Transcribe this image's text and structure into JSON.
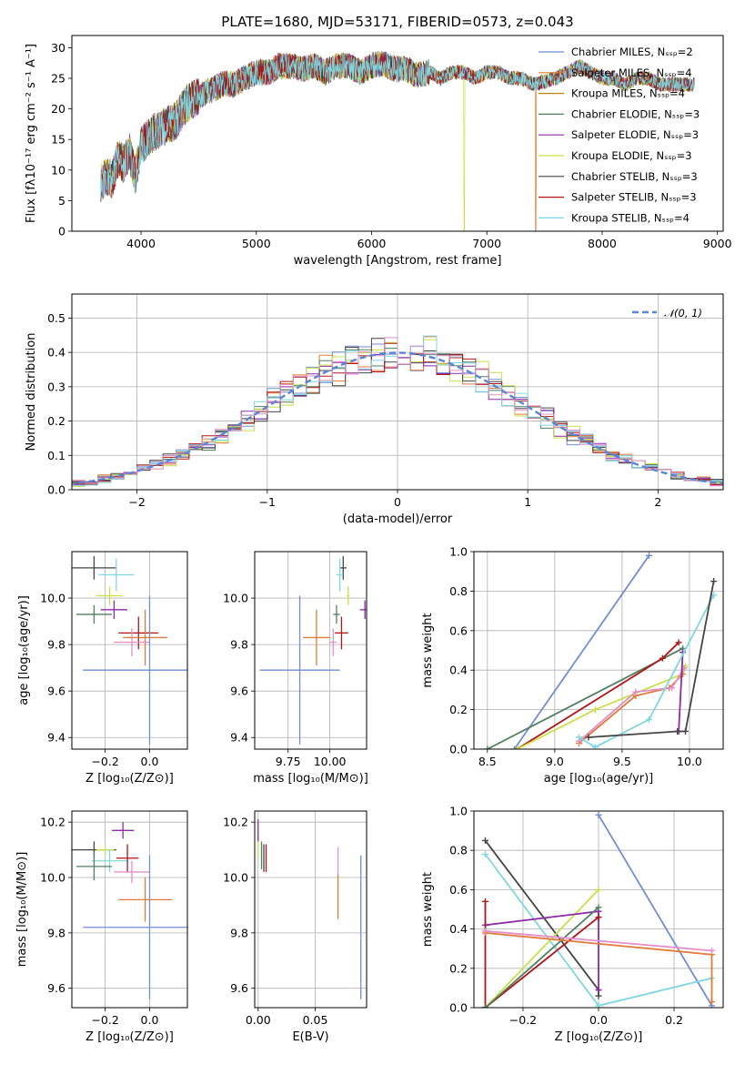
{
  "figure_title": "PLATE=1680, MJD=53171, FIBERID=0573, z=0.043",
  "chart_data": [
    {
      "id": "spectrum",
      "type": "line",
      "xlabel": "wavelength [Angstrom, rest frame]",
      "ylabel": "Flux [fλ10⁻¹⁷ erg cm⁻² s⁻¹ A⁻¹]",
      "xlim": [
        3400,
        9050
      ],
      "ylim": [
        0,
        32
      ],
      "xticks": [
        4000,
        5000,
        6000,
        7000,
        8000,
        9000
      ],
      "yticks": [
        0,
        5,
        10,
        15,
        20,
        25,
        30
      ],
      "grid": false,
      "legend_position": "upper-right",
      "observed_envelope": {
        "x": [
          3650,
          3700,
          3750,
          3800,
          3850,
          3900,
          3950,
          4000,
          4100,
          4200,
          4300,
          4400,
          4500,
          4600,
          4700,
          4800,
          4900,
          5000,
          5100,
          5200,
          5300,
          5400,
          5500,
          5600,
          5700,
          5800,
          5900,
          6000,
          6100,
          6200,
          6300,
          6400,
          6500,
          6600,
          6700,
          6800,
          6900,
          7000,
          7100,
          7200,
          7300,
          7400,
          7500,
          7600,
          7700,
          7800,
          7900,
          8000,
          8100,
          8200,
          8300,
          8400,
          8500,
          8600,
          8700,
          8800
        ],
        "y": [
          8,
          9,
          8.5,
          12,
          11,
          13,
          9,
          14,
          16,
          17,
          18,
          21,
          22,
          23,
          24,
          24,
          25,
          26,
          26,
          27,
          27,
          26.5,
          27,
          26,
          27,
          27,
          26,
          27,
          27.5,
          26.5,
          26.5,
          25.5,
          26,
          25,
          26,
          26,
          25,
          26,
          26,
          25,
          25,
          24,
          24.5,
          25,
          26,
          27,
          26,
          25,
          25,
          24,
          25,
          25,
          24,
          24,
          24,
          24
        ]
      },
      "series": [
        {
          "name": "Chabrier MILES, Nₛₛₚ=2",
          "color": "#6e8ed6",
          "cutoff": null
        },
        {
          "name": "Salpeter MILES, Nₛₛₚ=4",
          "color": "#e07b39",
          "cutoff": 7420
        },
        {
          "name": "Kroupa MILES, Nₛₛₚ=4",
          "color": "#b8860b",
          "cutoff": null
        },
        {
          "name": "Chabrier ELODIE, Nₛₛₚ=3",
          "color": "#4f7f5f",
          "cutoff": null
        },
        {
          "name": "Salpeter ELODIE, Nₛₛₚ=3",
          "color": "#8e2aa8",
          "cutoff": null
        },
        {
          "name": "Kroupa ELODIE, Nₛₛₚ=3",
          "color": "#c8e04a",
          "cutoff": 6800
        },
        {
          "name": "Chabrier STELIB, Nₛₛₚ=3",
          "color": "#444444",
          "cutoff": null
        },
        {
          "name": "Salpeter STELIB, Nₛₛₚ=3",
          "color": "#b01515",
          "cutoff": null
        },
        {
          "name": "Kroupa STELIB, Nₛₛₚ=4",
          "color": "#7fd6e0",
          "cutoff": null
        }
      ]
    },
    {
      "id": "residuals",
      "type": "line",
      "xlabel": "(data-model)/error",
      "ylabel": "Normed distribution",
      "xlim": [
        -2.5,
        2.5
      ],
      "ylim": [
        0,
        0.57
      ],
      "xticks": [
        -2,
        -1,
        0,
        1,
        2
      ],
      "yticks": [
        0.0,
        0.1,
        0.2,
        0.3,
        0.4,
        0.5
      ],
      "grid": true,
      "legend_position": "upper-right",
      "reference_curve": {
        "name": "𝒩(0, 1)",
        "color": "#5b84d6",
        "style": "dashed",
        "mean": 0,
        "sigma": 1
      },
      "bins": {
        "start": -2.5,
        "width": 0.1,
        "count": 50
      },
      "hist_series_colors": [
        "#6e8ed6",
        "#e07b39",
        "#4f7f5f",
        "#8e2aa8",
        "#c8e04a",
        "#444444",
        "#b01515",
        "#7fd6e0",
        "#e48fc8"
      ]
    },
    {
      "id": "age-vs-Z",
      "type": "scatter",
      "xlabel": "Z [log₁₀(Z/Z⊙)]",
      "ylabel": "age  [log₁₀(age/yr)]",
      "xlim": [
        -0.35,
        0.17
      ],
      "ylim": [
        9.35,
        10.2
      ],
      "xticks": [
        -0.2,
        0.0
      ],
      "yticks": [
        9.4,
        9.6,
        9.8,
        10.0
      ],
      "grid": true,
      "points": [
        {
          "x": -0.25,
          "y": 10.13,
          "xerr": 0.1,
          "yerr": 0.05,
          "color": "#444444"
        },
        {
          "x": -0.15,
          "y": 10.1,
          "xerr": 0.08,
          "yerr": 0.07,
          "color": "#7fd6e0"
        },
        {
          "x": -0.18,
          "y": 10.01,
          "xerr": 0.06,
          "yerr": 0.04,
          "color": "#c8e04a"
        },
        {
          "x": -0.16,
          "y": 9.95,
          "xerr": 0.06,
          "yerr": 0.04,
          "color": "#8e2aa8"
        },
        {
          "x": -0.25,
          "y": 9.93,
          "xerr": 0.08,
          "yerr": 0.04,
          "color": "#4f7f5f"
        },
        {
          "x": -0.05,
          "y": 9.85,
          "xerr": 0.09,
          "yerr": 0.07,
          "color": "#b01515"
        },
        {
          "x": -0.02,
          "y": 9.83,
          "xerr": 0.1,
          "yerr": 0.12,
          "color": "#e07b39"
        },
        {
          "x": -0.08,
          "y": 9.81,
          "xerr": 0.08,
          "yerr": 0.06,
          "color": "#e48fc8"
        },
        {
          "x": 0.0,
          "y": 9.69,
          "xerr": 0.3,
          "yerr": 0.32,
          "color": "#6e8ed6"
        }
      ]
    },
    {
      "id": "age-vs-mass",
      "type": "scatter",
      "xlabel": "mass [log₁₀(M/M⊙)]",
      "ylabel": "",
      "xlim": [
        9.55,
        10.22
      ],
      "ylim": [
        9.35,
        10.2
      ],
      "xticks": [
        9.75,
        10.0
      ],
      "yticks": [
        9.4,
        9.6,
        9.8,
        10.0
      ],
      "grid": true,
      "points": [
        {
          "x": 10.08,
          "y": 10.13,
          "xerr": 0.02,
          "yerr": 0.05,
          "color": "#444444"
        },
        {
          "x": 10.06,
          "y": 10.1,
          "xerr": 0.02,
          "yerr": 0.07,
          "color": "#7fd6e0"
        },
        {
          "x": 10.11,
          "y": 10.01,
          "xerr": 0.01,
          "yerr": 0.04,
          "color": "#c8e04a"
        },
        {
          "x": 10.21,
          "y": 9.95,
          "xerr": 0.03,
          "yerr": 0.04,
          "color": "#8e2aa8"
        },
        {
          "x": 10.04,
          "y": 9.93,
          "xerr": 0.02,
          "yerr": 0.04,
          "color": "#4f7f5f"
        },
        {
          "x": 10.07,
          "y": 9.85,
          "xerr": 0.04,
          "yerr": 0.07,
          "color": "#b01515"
        },
        {
          "x": 9.92,
          "y": 9.83,
          "xerr": 0.08,
          "yerr": 0.12,
          "color": "#e07b39"
        },
        {
          "x": 10.02,
          "y": 9.81,
          "xerr": 0.02,
          "yerr": 0.06,
          "color": "#e48fc8"
        },
        {
          "x": 9.82,
          "y": 9.69,
          "xerr": 0.24,
          "yerr": 0.32,
          "color": "#6e8ed6"
        }
      ]
    },
    {
      "id": "mass-weight-vs-age",
      "type": "line",
      "xlabel": "age  [log₁₀(age/yr)]",
      "ylabel": "mass weight",
      "xlim": [
        8.4,
        10.25
      ],
      "ylim": [
        0,
        1.0
      ],
      "xticks": [
        8.5,
        9.0,
        9.5,
        10.0
      ],
      "yticks": [
        0.0,
        0.2,
        0.4,
        0.6,
        0.8,
        1.0
      ],
      "grid": true,
      "series": [
        {
          "color": "#6e8ed6",
          "x": [
            8.7,
            9.7
          ],
          "y": [
            0.0,
            0.98
          ]
        },
        {
          "color": "#4f7f5f",
          "x": [
            8.5,
            9.95
          ],
          "y": [
            0.0,
            0.51
          ]
        },
        {
          "color": "#b01515",
          "x": [
            8.72,
            9.8,
            9.92
          ],
          "y": [
            0.0,
            0.46,
            0.54
          ]
        },
        {
          "color": "#c8e04a",
          "x": [
            8.72,
            9.3,
            9.95,
            9.97
          ],
          "y": [
            0.0,
            0.2,
            0.38,
            0.42
          ]
        },
        {
          "color": "#e07b39",
          "x": [
            9.18,
            9.6,
            9.85,
            9.95
          ],
          "y": [
            0.03,
            0.27,
            0.31,
            0.38
          ]
        },
        {
          "color": "#e48fc8",
          "x": [
            9.18,
            9.6,
            9.87,
            9.96
          ],
          "y": [
            0.04,
            0.29,
            0.31,
            0.41
          ]
        },
        {
          "color": "#8e2aa8",
          "x": [
            9.92,
            9.95
          ],
          "y": [
            0.09,
            0.49
          ]
        },
        {
          "color": "#7fd6e0",
          "x": [
            9.18,
            9.3,
            9.7,
            10.18
          ],
          "y": [
            0.06,
            0.01,
            0.15,
            0.78
          ]
        },
        {
          "color": "#444444",
          "x": [
            9.25,
            9.91,
            9.97,
            10.18
          ],
          "y": [
            0.06,
            0.09,
            0.09,
            0.85
          ]
        }
      ]
    },
    {
      "id": "mass-vs-Z",
      "type": "scatter",
      "xlabel": "Z [log₁₀(Z/Z⊙)]",
      "ylabel": "mass [log₁₀(M/M⊙)]",
      "xlim": [
        -0.35,
        0.17
      ],
      "ylim": [
        9.53,
        10.24
      ],
      "xticks": [
        -0.2,
        0.0
      ],
      "yticks": [
        9.6,
        9.8,
        10.0,
        10.2
      ],
      "grid": true,
      "points": [
        {
          "x": -0.12,
          "y": 10.17,
          "xerr": 0.05,
          "yerr": 0.03,
          "color": "#8e2aa8"
        },
        {
          "x": -0.25,
          "y": 10.1,
          "xerr": 0.1,
          "yerr": 0.03,
          "color": "#444444"
        },
        {
          "x": -0.2,
          "y": 10.1,
          "xerr": 0.04,
          "yerr": 0.02,
          "color": "#c8e04a"
        },
        {
          "x": -0.18,
          "y": 10.06,
          "xerr": 0.08,
          "yerr": 0.04,
          "color": "#7fd6e0"
        },
        {
          "x": -0.1,
          "y": 10.07,
          "xerr": 0.05,
          "yerr": 0.05,
          "color": "#b01515"
        },
        {
          "x": -0.25,
          "y": 10.04,
          "xerr": 0.08,
          "yerr": 0.05,
          "color": "#4f7f5f"
        },
        {
          "x": -0.08,
          "y": 10.02,
          "xerr": 0.08,
          "yerr": 0.04,
          "color": "#e48fc8"
        },
        {
          "x": -0.02,
          "y": 9.92,
          "xerr": 0.12,
          "yerr": 0.08,
          "color": "#e07b39"
        },
        {
          "x": 0.0,
          "y": 9.82,
          "xerr": 0.3,
          "yerr": 0.26,
          "color": "#6e8ed6"
        }
      ]
    },
    {
      "id": "mass-vs-ebv",
      "type": "scatter",
      "xlabel": "E(B-V)",
      "ylabel": "",
      "xlim": [
        -0.003,
        0.095
      ],
      "ylim": [
        9.53,
        10.24
      ],
      "xticks": [
        0.0,
        0.05
      ],
      "yticks": [
        9.6,
        9.8,
        10.0,
        10.2
      ],
      "grid": true,
      "points": [
        {
          "x": 0.0,
          "y": 10.17,
          "xerr": 0,
          "yerr": 0.04,
          "color": "#8e2aa8"
        },
        {
          "x": 0.0,
          "y": 10.1,
          "xerr": 0,
          "yerr": 0.03,
          "color": "#c8e04a"
        },
        {
          "x": 0.003,
          "y": 10.08,
          "xerr": 0,
          "yerr": 0.05,
          "color": "#4f7f5f"
        },
        {
          "x": 0.005,
          "y": 10.07,
          "xerr": 0,
          "yerr": 0.05,
          "color": "#444444"
        },
        {
          "x": 0.007,
          "y": 10.07,
          "xerr": 0,
          "yerr": 0.05,
          "color": "#b01515"
        },
        {
          "x": 0.07,
          "y": 10.06,
          "xerr": 0,
          "yerr": 0.05,
          "color": "#e48fc8"
        },
        {
          "x": 0.07,
          "y": 9.93,
          "xerr": 0,
          "yerr": 0.08,
          "color": "#e07b39"
        },
        {
          "x": 0.09,
          "y": 9.82,
          "xerr": 0,
          "yerr": 0.26,
          "color": "#6e8ed6"
        }
      ]
    },
    {
      "id": "mass-weight-vs-Z",
      "type": "line",
      "xlabel": "Z [log₁₀(Z/Z⊙)]",
      "ylabel": "mass weight",
      "xlim": [
        -0.33,
        0.33
      ],
      "ylim": [
        0,
        1.0
      ],
      "xticks": [
        -0.2,
        0.0,
        0.2
      ],
      "yticks": [
        0.0,
        0.2,
        0.4,
        0.6,
        0.8,
        1.0
      ],
      "grid": true,
      "series": [
        {
          "color": "#6e8ed6",
          "x": [
            0.0,
            0.3
          ],
          "y": [
            0.98,
            0.01
          ]
        },
        {
          "color": "#444444",
          "x": [
            -0.3,
            0.0,
            0.0
          ],
          "y": [
            0.85,
            0.09,
            0.06
          ]
        },
        {
          "color": "#7fd6e0",
          "x": [
            -0.3,
            0.0,
            0.3
          ],
          "y": [
            0.78,
            0.01,
            0.15
          ]
        },
        {
          "color": "#c8e04a",
          "x": [
            -0.3,
            0.0
          ],
          "y": [
            0.0,
            0.6
          ]
        },
        {
          "color": "#8e2aa8",
          "x": [
            -0.3,
            0.0,
            0.0
          ],
          "y": [
            0.42,
            0.49,
            0.09
          ]
        },
        {
          "color": "#b01515",
          "x": [
            -0.3,
            -0.3,
            0.0
          ],
          "y": [
            0.54,
            0.0,
            0.46
          ]
        },
        {
          "color": "#4f7f5f",
          "x": [
            -0.3,
            -0.3,
            0.0
          ],
          "y": [
            0.0,
            0.0,
            0.51
          ]
        },
        {
          "color": "#e07b39",
          "x": [
            -0.3,
            0.3,
            0.3
          ],
          "y": [
            0.38,
            0.27,
            0.03
          ]
        },
        {
          "color": "#e48fc8",
          "x": [
            -0.3,
            0.3
          ],
          "y": [
            0.39,
            0.29
          ]
        }
      ]
    }
  ]
}
